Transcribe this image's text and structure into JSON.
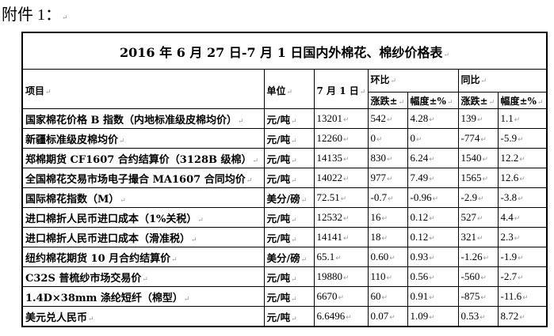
{
  "attachment_label": "附件 1：",
  "table": {
    "title": "2016 年 6 月 27 日-7 月 1 日国内外棉花、棉纱价格表",
    "headers": {
      "item": "项目",
      "unit": "单位",
      "date": "7 月 1 日",
      "mom": "环比",
      "yoy": "同比",
      "change": "涨跌±",
      "pct": "幅度±%"
    },
    "rows": [
      {
        "item": "国家棉花价格 B 指数（内地标准级皮棉均价）",
        "unit": "元/吨",
        "value": "13201",
        "mom_change": "542",
        "mom_pct": "4.28",
        "yoy_change": "139",
        "yoy_pct": "1.1"
      },
      {
        "item": "新疆标准级皮棉均价",
        "unit": "元/吨",
        "value": "12260",
        "mom_change": "0",
        "mom_pct": "0",
        "yoy_change": "-774",
        "yoy_pct": "-5.9"
      },
      {
        "item": "郑棉期货 CF1607 合约结算价（3128B 级棉）",
        "unit": "元/吨",
        "value": "14135",
        "mom_change": "830",
        "mom_pct": "6.24",
        "yoy_change": "1540",
        "yoy_pct": "12.2"
      },
      {
        "item": "全国棉花交易市场电子撮合 MA1607 合同均价",
        "unit": "元/吨",
        "value": "14022",
        "mom_change": "977",
        "mom_pct": "7.49",
        "yoy_change": "1565",
        "yoy_pct": "12.6"
      },
      {
        "item": "国际棉花指数（M）",
        "unit": "美分/磅",
        "value": "72.51",
        "mom_change": "-0.7",
        "mom_pct": "-0.96",
        "yoy_change": "-2.9",
        "yoy_pct": "-3.8"
      },
      {
        "item": "进口棉折人民币进口成本（1%关税）",
        "unit": "元/吨",
        "value": "12532",
        "mom_change": "16",
        "mom_pct": "0.12",
        "yoy_change": "527",
        "yoy_pct": "4.4"
      },
      {
        "item": "进口棉折人民币进口成本（滑准税）",
        "unit": "元/吨",
        "value": "14141",
        "mom_change": "18",
        "mom_pct": "0.12",
        "yoy_change": "321",
        "yoy_pct": "2.3"
      },
      {
        "item": "纽约棉花期货 10 月合约结算价",
        "unit": "美分/磅",
        "value": "65.1",
        "mom_change": "0.60",
        "mom_pct": "0.93",
        "yoy_change": "-1.26",
        "yoy_pct": "-1.9"
      },
      {
        "item": "C32S 普梳纱市场交易价",
        "unit": "元/吨",
        "value": "19880",
        "mom_change": "110",
        "mom_pct": "0.56",
        "yoy_change": "-560",
        "yoy_pct": "-2.7"
      },
      {
        "item": "1.4D×38mm 涤纶短纤（棉型）",
        "unit": "元/吨",
        "value": "6670",
        "mom_change": "60",
        "mom_pct": "0.91",
        "yoy_change": "-875",
        "yoy_pct": "-11.6"
      },
      {
        "item": "美元兑人民币",
        "unit": "元/吨",
        "value": "6.6496",
        "mom_change": "0.07",
        "mom_pct": "1.09",
        "yoy_change": "0.53",
        "yoy_pct": "8.72"
      }
    ]
  }
}
